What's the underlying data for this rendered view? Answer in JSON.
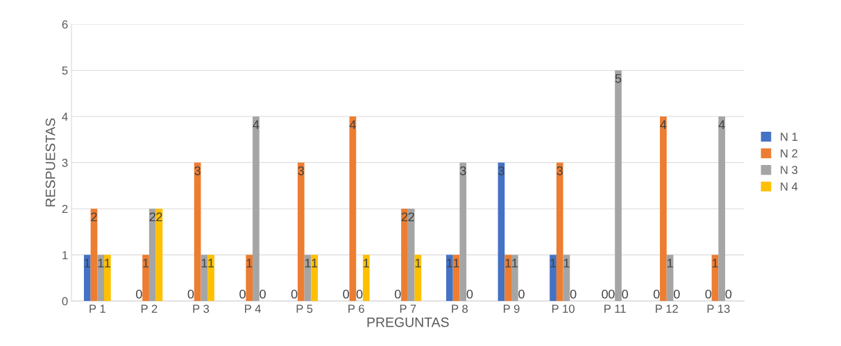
{
  "chart_data": {
    "type": "bar",
    "xlabel": "PREGUNTAS",
    "ylabel": "RESPUESTAS",
    "categories": [
      "P 1",
      "P 2",
      "P 3",
      "P 4",
      "P 5",
      "P 6",
      "P 7",
      "P 8",
      "P 9",
      "P 10",
      "P 11",
      "P 12",
      "P 13"
    ],
    "series": [
      {
        "name": "N 1",
        "color": "#4472c4",
        "values": [
          1,
          0,
          0,
          0,
          0,
          0,
          0,
          1,
          3,
          1,
          0,
          0,
          0
        ]
      },
      {
        "name": "N 2",
        "color": "#ed7d31",
        "values": [
          2,
          1,
          3,
          1,
          3,
          4,
          2,
          1,
          1,
          3,
          0,
          4,
          1
        ]
      },
      {
        "name": "N 3",
        "color": "#a5a5a5",
        "values": [
          1,
          2,
          1,
          4,
          1,
          0,
          2,
          3,
          1,
          1,
          5,
          1,
          4
        ]
      },
      {
        "name": "N 4",
        "color": "#ffc000",
        "values": [
          1,
          2,
          1,
          0,
          1,
          1,
          1,
          0,
          0,
          0,
          0,
          0,
          0
        ]
      }
    ],
    "ylim": [
      0,
      6
    ],
    "yticks": [
      0,
      1,
      2,
      3,
      4,
      5,
      6
    ],
    "grid": "y",
    "legend": "right",
    "data_labels": true
  }
}
